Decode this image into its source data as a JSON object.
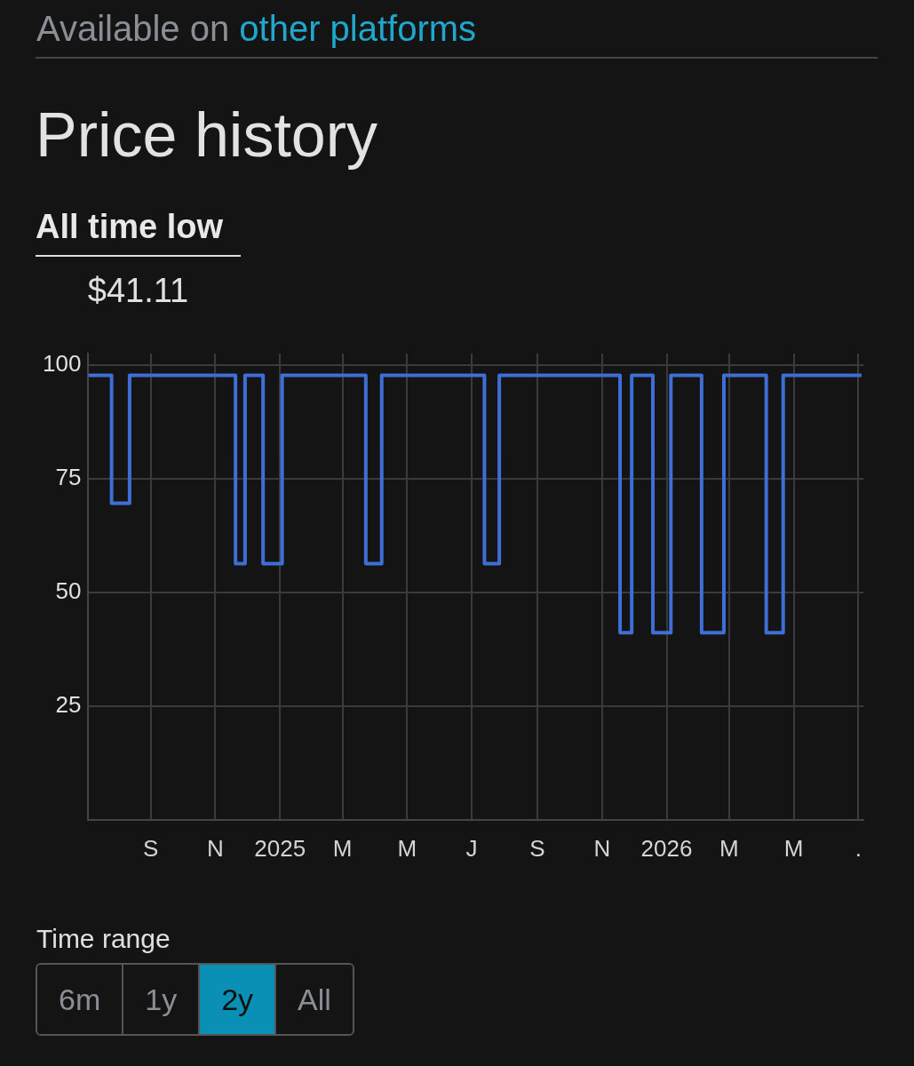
{
  "chart_data": {
    "type": "step",
    "title": "Price history",
    "subtitle": "All time low",
    "annotations": [
      "Available on",
      "other platforms",
      "$41.11",
      "Time range",
      "6m",
      "1y",
      "2y",
      "All"
    ],
    "x": [
      "2024-07-04",
      "2024-07-26",
      "2024-08-12",
      "2024-11-20",
      "2024-11-29",
      "2024-12-16",
      "2025-01-03",
      "2025-03-23",
      "2025-04-07",
      "2025-07-13",
      "2025-07-27",
      "2025-11-18",
      "2025-11-29",
      "2025-12-19",
      "2026-01-05",
      "2026-02-03",
      "2026-02-24",
      "2026-04-05",
      "2026-04-21",
      "2026-07-04"
    ],
    "series": [
      {
        "color": "#3d6fd6",
        "values": [
          97.7,
          69.6,
          97.7,
          56.3,
          97.7,
          56.3,
          97.7,
          56.3,
          97.7,
          56.3,
          97.7,
          41.1,
          97.7,
          41.1,
          97.7,
          41.1,
          97.7,
          41.1,
          97.7,
          97.7
        ]
      }
    ],
    "xlim": [
      "2024-07-04",
      "2026-07-06"
    ],
    "xticks": [
      {
        "value": "2024-09-01",
        "label": "S"
      },
      {
        "value": "2024-11-01",
        "label": "N"
      },
      {
        "value": "2025-01-01",
        "label": "2025"
      },
      {
        "value": "2025-03-01",
        "label": "M"
      },
      {
        "value": "2025-05-01",
        "label": "M"
      },
      {
        "value": "2025-07-01",
        "label": "J"
      },
      {
        "value": "2025-09-01",
        "label": "S"
      },
      {
        "value": "2025-11-01",
        "label": "N"
      },
      {
        "value": "2026-01-01",
        "label": "2026"
      },
      {
        "value": "2026-03-01",
        "label": "M"
      },
      {
        "value": "2026-05-01",
        "label": "M"
      },
      {
        "value": "2026-07-01",
        "label": "."
      }
    ],
    "ylim": [
      0,
      102.5
    ],
    "yticks": [
      25,
      50,
      75,
      100
    ],
    "grid": true,
    "line_style": "solid",
    "marker": "none"
  }
}
